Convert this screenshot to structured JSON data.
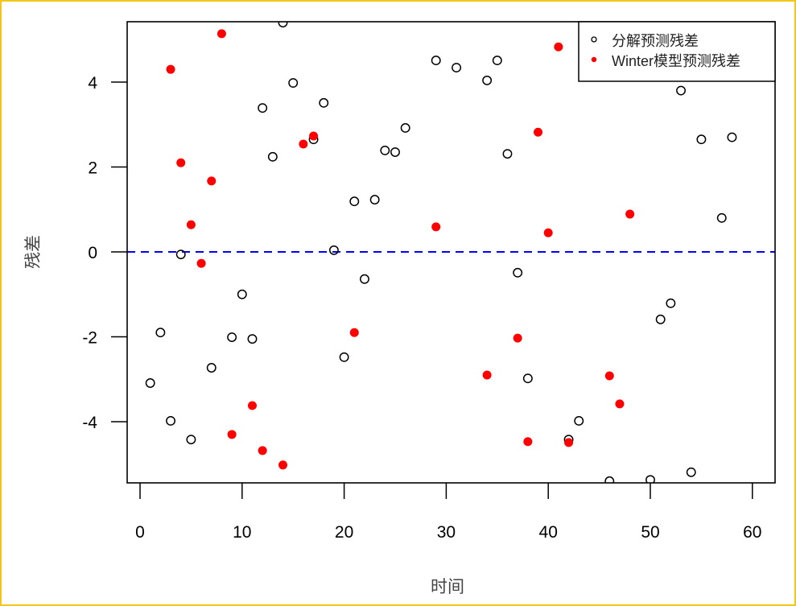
{
  "chart_data": {
    "type": "scatter",
    "title": "",
    "xlabel": "时间",
    "ylabel": "残差",
    "xlim": [
      -1.2,
      62.3
    ],
    "ylim": [
      -5.4,
      5.42
    ],
    "x_ticks": [
      0,
      10,
      20,
      30,
      40,
      50,
      60
    ],
    "y_ticks": [
      -4,
      -2,
      0,
      2,
      4
    ],
    "grid": false,
    "legend_position": "top-right",
    "reference_line": {
      "y": 0,
      "style": "dashed",
      "color": "#0000FF"
    },
    "series": [
      {
        "name": "分解预测残差",
        "marker": "open-circle",
        "color": "#000000",
        "points": [
          [
            1,
            -3.09
          ],
          [
            2,
            -1.9
          ],
          [
            3,
            -3.98
          ],
          [
            4,
            -0.06
          ],
          [
            5,
            -4.42
          ],
          [
            7,
            -2.73
          ],
          [
            9,
            -2.01
          ],
          [
            10,
            -1.0
          ],
          [
            11,
            -2.05
          ],
          [
            12,
            3.39
          ],
          [
            13,
            2.24
          ],
          [
            14,
            5.4
          ],
          [
            15,
            3.98
          ],
          [
            17,
            2.65
          ],
          [
            18,
            3.51
          ],
          [
            19,
            0.04
          ],
          [
            20,
            -2.48
          ],
          [
            21,
            1.19
          ],
          [
            22,
            -0.64
          ],
          [
            23,
            1.23
          ],
          [
            24,
            2.39
          ],
          [
            25,
            2.35
          ],
          [
            26,
            2.92
          ],
          [
            29,
            4.51
          ],
          [
            31,
            4.34
          ],
          [
            34,
            4.04
          ],
          [
            35,
            4.51
          ],
          [
            36,
            2.31
          ],
          [
            37,
            -0.49
          ],
          [
            38,
            -2.98
          ],
          [
            42,
            -4.42
          ],
          [
            43,
            -3.98
          ],
          [
            44,
            4.74
          ],
          [
            46,
            -5.4
          ],
          [
            50,
            -5.37
          ],
          [
            51,
            -1.59
          ],
          [
            52,
            -1.21
          ],
          [
            53,
            3.8
          ],
          [
            54,
            -5.19
          ],
          [
            55,
            2.65
          ],
          [
            57,
            0.8
          ],
          [
            58,
            2.7
          ]
        ]
      },
      {
        "name": "Winter模型预测残差",
        "marker": "filled-dot",
        "color": "#FF0000",
        "points": [
          [
            3,
            4.3
          ],
          [
            4,
            2.1
          ],
          [
            5,
            0.64
          ],
          [
            6,
            -0.27
          ],
          [
            7,
            1.67
          ],
          [
            8,
            5.14
          ],
          [
            9,
            -4.3
          ],
          [
            11,
            -3.62
          ],
          [
            12,
            -4.68
          ],
          [
            14,
            -5.02
          ],
          [
            16,
            2.54
          ],
          [
            17,
            2.73
          ],
          [
            21,
            -1.9
          ],
          [
            29,
            0.59
          ],
          [
            34,
            -2.9
          ],
          [
            37,
            -2.03
          ],
          [
            38,
            -4.47
          ],
          [
            39,
            2.82
          ],
          [
            40,
            0.45
          ],
          [
            41,
            4.83
          ],
          [
            42,
            -4.49
          ],
          [
            46,
            -2.92
          ],
          [
            47,
            -3.58
          ],
          [
            48,
            0.89
          ]
        ]
      }
    ]
  },
  "legend": {
    "items": [
      {
        "label": "分解预测残差",
        "marker": "open-circle",
        "color": "#000000"
      },
      {
        "label": "Winter模型预测残差",
        "marker": "filled-dot",
        "color": "#FF0000"
      }
    ]
  },
  "colors": {
    "frame_border": "#F5C518",
    "reference_line": "#0000FF",
    "series_1": "#000000",
    "series_2": "#FF0000"
  }
}
